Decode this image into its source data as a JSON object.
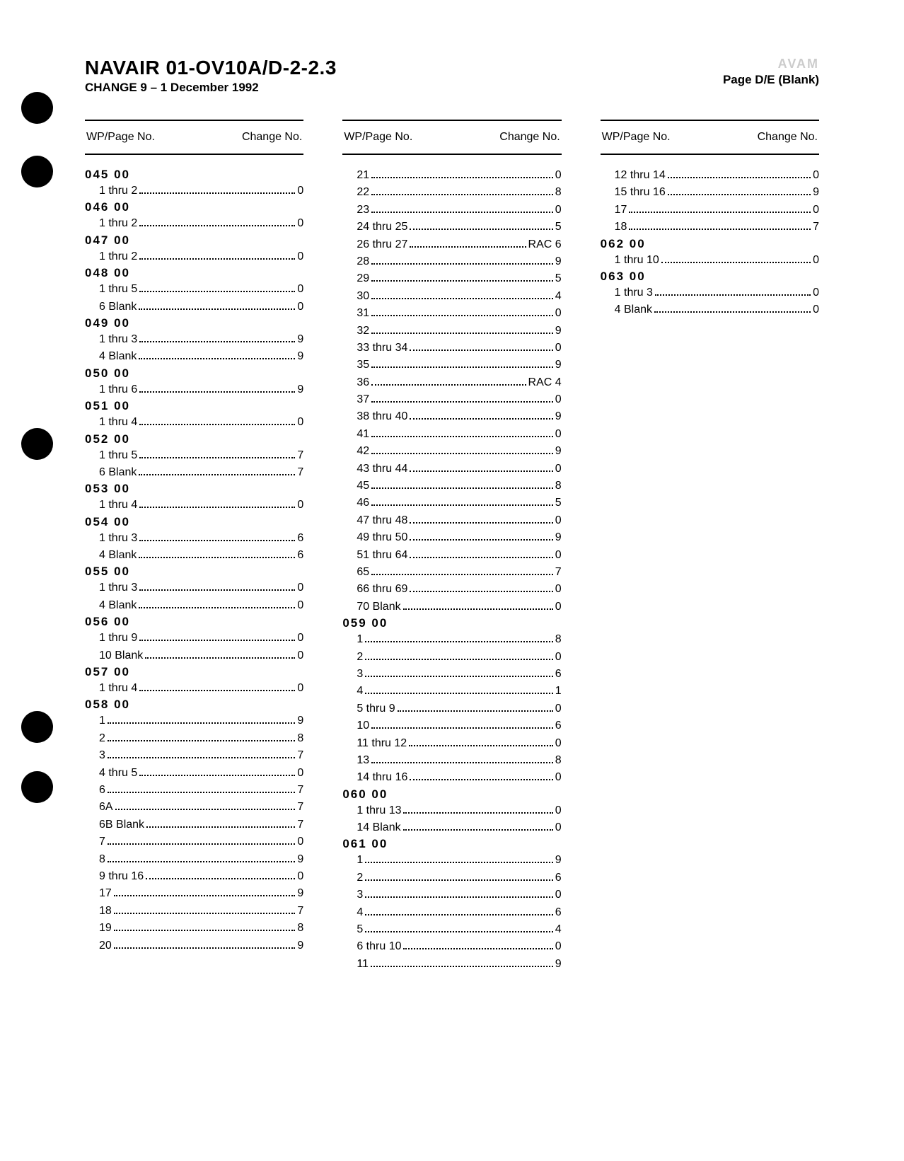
{
  "header": {
    "title": "NAVAIR 01-OV10A/D-2-2.3",
    "subtitle": "CHANGE 9 – 1 December 1992",
    "ghost": "AVAM",
    "page_label": "Page D/E (Blank)"
  },
  "col_header_left": "WP/Page No.",
  "col_header_right": "Change No.",
  "punch_holes": [
    130,
    220,
    605,
    1005,
    1090
  ],
  "columns": [
    {
      "items": [
        {
          "type": "section",
          "label": "045  00"
        },
        {
          "type": "entry",
          "label": "1 thru 2",
          "value": "0"
        },
        {
          "type": "section",
          "label": "046  00"
        },
        {
          "type": "entry",
          "label": "1 thru 2",
          "value": "0"
        },
        {
          "type": "section",
          "label": "047  00"
        },
        {
          "type": "entry",
          "label": "1 thru 2",
          "value": "0"
        },
        {
          "type": "section",
          "label": "048  00"
        },
        {
          "type": "entry",
          "label": "1 thru 5",
          "value": "0"
        },
        {
          "type": "entry",
          "label": "6 Blank",
          "value": "0"
        },
        {
          "type": "section",
          "label": "049  00"
        },
        {
          "type": "entry",
          "label": "1 thru 3",
          "value": "9"
        },
        {
          "type": "entry",
          "label": "4 Blank",
          "value": "9"
        },
        {
          "type": "section",
          "label": "050  00"
        },
        {
          "type": "entry",
          "label": "1 thru 6",
          "value": "9"
        },
        {
          "type": "section",
          "label": "051  00"
        },
        {
          "type": "entry",
          "label": "1 thru 4",
          "value": "0"
        },
        {
          "type": "section",
          "label": "052  00"
        },
        {
          "type": "entry",
          "label": "1 thru 5",
          "value": "7"
        },
        {
          "type": "entry",
          "label": "6 Blank",
          "value": "7"
        },
        {
          "type": "section",
          "label": "053  00"
        },
        {
          "type": "entry",
          "label": "1 thru 4",
          "value": "0"
        },
        {
          "type": "section",
          "label": "054  00"
        },
        {
          "type": "entry",
          "label": "1 thru 3",
          "value": "6"
        },
        {
          "type": "entry",
          "label": "4 Blank",
          "value": "6"
        },
        {
          "type": "section",
          "label": "055  00"
        },
        {
          "type": "entry",
          "label": "1 thru 3",
          "value": "0"
        },
        {
          "type": "entry",
          "label": "4 Blank",
          "value": "0"
        },
        {
          "type": "section",
          "label": "056  00"
        },
        {
          "type": "entry",
          "label": "1 thru 9",
          "value": "0"
        },
        {
          "type": "entry",
          "label": "10 Blank",
          "value": "0"
        },
        {
          "type": "section",
          "label": "057  00"
        },
        {
          "type": "entry",
          "label": "1 thru 4",
          "value": "0"
        },
        {
          "type": "section",
          "label": "058  00"
        },
        {
          "type": "entry",
          "label": "1",
          "value": "9"
        },
        {
          "type": "entry",
          "label": "2",
          "value": "8"
        },
        {
          "type": "entry",
          "label": "3",
          "value": "7"
        },
        {
          "type": "entry",
          "label": "4 thru 5",
          "value": "0"
        },
        {
          "type": "entry",
          "label": "6",
          "value": "7"
        },
        {
          "type": "entry",
          "label": "6A",
          "value": "7"
        },
        {
          "type": "entry",
          "label": "6B Blank",
          "value": "7"
        },
        {
          "type": "entry",
          "label": "7",
          "value": "0"
        },
        {
          "type": "entry",
          "label": "8",
          "value": "9"
        },
        {
          "type": "entry",
          "label": "9 thru 16",
          "value": "0"
        },
        {
          "type": "entry",
          "label": "17",
          "value": "9"
        },
        {
          "type": "entry",
          "label": "18",
          "value": "7"
        },
        {
          "type": "entry",
          "label": "19",
          "value": "8"
        },
        {
          "type": "entry",
          "label": "20",
          "value": "9"
        }
      ]
    },
    {
      "items": [
        {
          "type": "entry",
          "label": "21",
          "value": "0"
        },
        {
          "type": "entry",
          "label": "22",
          "value": "8"
        },
        {
          "type": "entry",
          "label": "23",
          "value": "0"
        },
        {
          "type": "entry",
          "label": "24 thru 25",
          "value": "5"
        },
        {
          "type": "entry",
          "label": "26 thru 27",
          "value": "RAC 6"
        },
        {
          "type": "entry",
          "label": "28",
          "value": "9"
        },
        {
          "type": "entry",
          "label": "29",
          "value": "5"
        },
        {
          "type": "entry",
          "label": "30",
          "value": "4"
        },
        {
          "type": "entry",
          "label": "31",
          "value": "0"
        },
        {
          "type": "entry",
          "label": "32",
          "value": "9"
        },
        {
          "type": "entry",
          "label": "33 thru 34",
          "value": "0"
        },
        {
          "type": "entry",
          "label": "35",
          "value": "9"
        },
        {
          "type": "entry",
          "label": "36",
          "value": "RAC 4"
        },
        {
          "type": "entry",
          "label": "37",
          "value": "0"
        },
        {
          "type": "entry",
          "label": "38 thru 40",
          "value": "9"
        },
        {
          "type": "entry",
          "label": "41",
          "value": "0"
        },
        {
          "type": "entry",
          "label": "42",
          "value": "9"
        },
        {
          "type": "entry",
          "label": "43 thru 44",
          "value": "0"
        },
        {
          "type": "entry",
          "label": "45",
          "value": "8"
        },
        {
          "type": "entry",
          "label": "46",
          "value": "5"
        },
        {
          "type": "entry",
          "label": "47 thru 48",
          "value": "0"
        },
        {
          "type": "entry",
          "label": "49 thru 50",
          "value": "9"
        },
        {
          "type": "entry",
          "label": "51 thru 64",
          "value": "0"
        },
        {
          "type": "entry",
          "label": "65",
          "value": "7"
        },
        {
          "type": "entry",
          "label": "66 thru 69",
          "value": "0"
        },
        {
          "type": "entry",
          "label": "70 Blank",
          "value": "0"
        },
        {
          "type": "section",
          "label": "059  00"
        },
        {
          "type": "entry",
          "label": "1",
          "value": "8"
        },
        {
          "type": "entry",
          "label": "2",
          "value": "0"
        },
        {
          "type": "entry",
          "label": "3",
          "value": "6"
        },
        {
          "type": "entry",
          "label": "4",
          "value": "1"
        },
        {
          "type": "entry",
          "label": "5 thru 9",
          "value": "0"
        },
        {
          "type": "entry",
          "label": "10",
          "value": "6"
        },
        {
          "type": "entry",
          "label": "11 thru 12",
          "value": "0"
        },
        {
          "type": "entry",
          "label": "13",
          "value": "8"
        },
        {
          "type": "entry",
          "label": "14 thru 16",
          "value": "0"
        },
        {
          "type": "section",
          "label": "060  00"
        },
        {
          "type": "entry",
          "label": "1 thru 13",
          "value": "0"
        },
        {
          "type": "entry",
          "label": "14 Blank",
          "value": "0"
        },
        {
          "type": "section",
          "label": "061  00"
        },
        {
          "type": "entry",
          "label": "1",
          "value": "9"
        },
        {
          "type": "entry",
          "label": "2",
          "value": "6"
        },
        {
          "type": "entry",
          "label": "3",
          "value": "0"
        },
        {
          "type": "entry",
          "label": "4",
          "value": "6"
        },
        {
          "type": "entry",
          "label": "5",
          "value": "4"
        },
        {
          "type": "entry",
          "label": "6 thru 10",
          "value": "0"
        },
        {
          "type": "entry",
          "label": "11",
          "value": "9"
        }
      ]
    },
    {
      "items": [
        {
          "type": "entry",
          "label": "12 thru 14",
          "value": "0"
        },
        {
          "type": "entry",
          "label": "15 thru 16",
          "value": "9"
        },
        {
          "type": "entry",
          "label": "17",
          "value": "0"
        },
        {
          "type": "entry",
          "label": "18",
          "value": "7"
        },
        {
          "type": "section",
          "label": "062  00"
        },
        {
          "type": "entry",
          "label": "1 thru 10",
          "value": "0"
        },
        {
          "type": "section",
          "label": "063  00"
        },
        {
          "type": "entry",
          "label": "1 thru 3",
          "value": "0"
        },
        {
          "type": "entry",
          "label": "4 Blank",
          "value": "0"
        }
      ],
      "ghost_artifacts": [
        "",
        "",
        "",
        "",
        "",
        "",
        "",
        "",
        "",
        "",
        "",
        "",
        "",
        "",
        "",
        "",
        "",
        "",
        "",
        "",
        "",
        "",
        "",
        "",
        "",
        "",
        "",
        "",
        "",
        ""
      ]
    }
  ]
}
